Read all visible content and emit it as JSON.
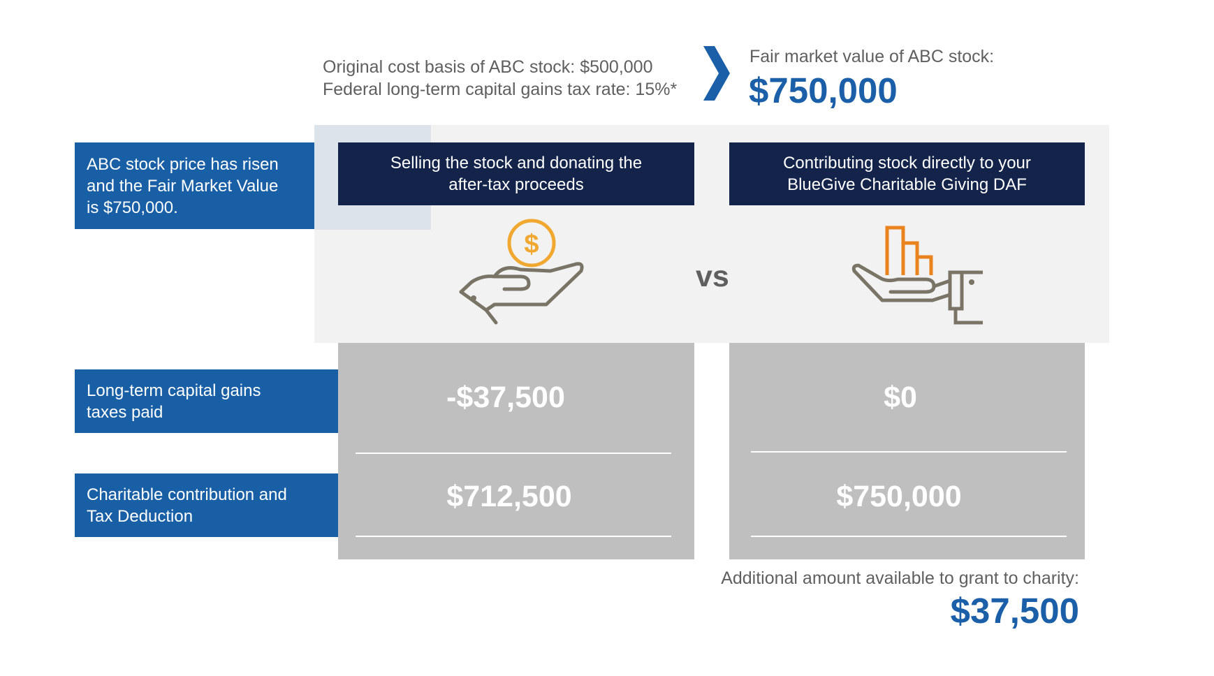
{
  "header": {
    "cost_basis": "Original cost basis of ABC stock:  $500,000",
    "tax_rate": "Federal long-term capital gains tax rate:  15%*",
    "fmv_label": "Fair market value of ABC stock:",
    "fmv_value": "$750,000"
  },
  "side_labels": {
    "intro": [
      "ABC stock price has risen",
      "and the Fair Market Value",
      "is $750,000."
    ],
    "taxes": [
      "Long-term capital gains",
      "taxes paid"
    ],
    "contribution": [
      "Charitable contribution and",
      "Tax Deduction"
    ]
  },
  "columns": [
    {
      "heading": [
        "Selling the stock and donating the",
        "after-tax proceeds"
      ],
      "icon": "hand-holding-coin-icon",
      "taxes_value": "-$37,500",
      "contribution_value": "$712,500"
    },
    {
      "heading": [
        "Contributing stock directly to your",
        "BlueGive Charitable Giving DAF"
      ],
      "icon": "hand-holding-bar-chart-icon",
      "taxes_value": "$0",
      "contribution_value": "$750,000"
    }
  ],
  "vs_text": "vs",
  "footer": {
    "additional_label": "Additional amount available to grant to charity:",
    "additional_value": "$37,500"
  },
  "colors": {
    "accent_blue": "#1a5fa8",
    "label_blue": "#195fa6",
    "navy": "#13234a",
    "coin_orange": "#f0a830",
    "chart_orange": "#e8831e",
    "icon_gray": "#7a7466",
    "value_gray": "#bfbfbf"
  }
}
